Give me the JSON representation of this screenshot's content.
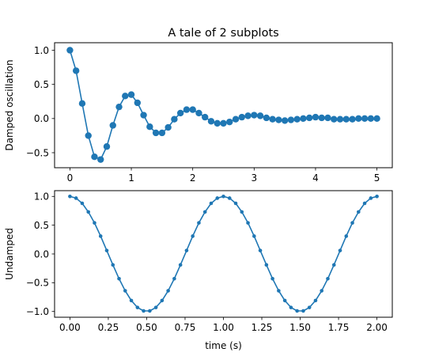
{
  "figure_title": "A tale of 2 subplots",
  "chart_data": [
    {
      "type": "line",
      "title": "A tale of 2 subplots",
      "xlabel": "",
      "ylabel": "Damped oscillation",
      "xlim": [
        -0.25,
        5.25
      ],
      "ylim": [
        -0.72,
        1.11
      ],
      "xticks": [
        0,
        1,
        2,
        3,
        4,
        5
      ],
      "xtick_labels": [
        "0",
        "1",
        "2",
        "3",
        "4",
        "5"
      ],
      "yticks": [
        -0.5,
        0.0,
        0.5,
        1.0
      ],
      "ytick_labels": [
        "−0.5",
        "0.0",
        "0.5",
        "1.0"
      ],
      "grid": false,
      "color": "#1f77b4",
      "marker": "circle",
      "series": [
        {
          "x": [
            0.0,
            0.1,
            0.2,
            0.3,
            0.4,
            0.5,
            0.6,
            0.7,
            0.8,
            0.9,
            1.0,
            1.1,
            1.2,
            1.3,
            1.4,
            1.5,
            1.6,
            1.7,
            1.8,
            1.9,
            2.0,
            2.1,
            2.2,
            2.3,
            2.4,
            2.5,
            2.6,
            2.7,
            2.8,
            2.9,
            3.0,
            3.1,
            3.2,
            3.3,
            3.4,
            3.5,
            3.6,
            3.7,
            3.8,
            3.9,
            4.0,
            4.1,
            4.2,
            4.3,
            4.4,
            4.5,
            4.6,
            4.7,
            4.8,
            4.9,
            5.0
          ],
          "y": [
            1.0,
            0.7,
            0.22,
            -0.25,
            -0.56,
            -0.6,
            -0.41,
            -0.1,
            0.17,
            0.33,
            0.35,
            0.23,
            0.05,
            -0.12,
            -0.21,
            -0.21,
            -0.13,
            -0.01,
            0.08,
            0.13,
            0.13,
            0.08,
            0.02,
            -0.04,
            -0.07,
            -0.07,
            -0.05,
            -0.01,
            0.02,
            0.04,
            0.05,
            0.04,
            0.01,
            -0.01,
            -0.02,
            -0.03,
            -0.02,
            -0.01,
            0.0,
            0.01,
            0.02,
            0.01,
            0.01,
            -0.01,
            -0.01,
            -0.01,
            -0.01,
            0.0,
            0.0,
            0.0,
            0.0
          ]
        }
      ]
    },
    {
      "type": "line",
      "title": "",
      "xlabel": "time (s)",
      "ylabel": "Undamped",
      "xlim": [
        -0.1,
        2.1
      ],
      "ylim": [
        -1.1,
        1.1
      ],
      "xticks": [
        0.0,
        0.25,
        0.5,
        0.75,
        1.0,
        1.25,
        1.5,
        1.75,
        2.0
      ],
      "xtick_labels": [
        "0.00",
        "0.25",
        "0.50",
        "0.75",
        "1.00",
        "1.25",
        "1.50",
        "1.75",
        "2.00"
      ],
      "yticks": [
        -1.0,
        -0.5,
        0.0,
        0.5,
        1.0
      ],
      "ytick_labels": [
        "−1.0",
        "−0.5",
        "0.0",
        "0.5",
        "1.0"
      ],
      "grid": false,
      "color": "#1f77b4",
      "marker": "small-dot",
      "series": [
        {
          "x": [
            0.0,
            0.04,
            0.08,
            0.12,
            0.16,
            0.2,
            0.24,
            0.28,
            0.32,
            0.36,
            0.4,
            0.44,
            0.48,
            0.52,
            0.56,
            0.6,
            0.64,
            0.68,
            0.72,
            0.76,
            0.8,
            0.84,
            0.88,
            0.92,
            0.96,
            1.0,
            1.04,
            1.08,
            1.12,
            1.16,
            1.2,
            1.24,
            1.28,
            1.32,
            1.36,
            1.4,
            1.44,
            1.48,
            1.52,
            1.56,
            1.6,
            1.64,
            1.68,
            1.72,
            1.76,
            1.8,
            1.84,
            1.88,
            1.92,
            1.96,
            2.0
          ],
          "y": [
            1.0,
            0.97,
            0.88,
            0.73,
            0.54,
            0.31,
            0.06,
            -0.19,
            -0.43,
            -0.64,
            -0.81,
            -0.93,
            -0.99,
            -0.99,
            -0.93,
            -0.81,
            -0.64,
            -0.43,
            -0.19,
            0.06,
            0.31,
            0.54,
            0.73,
            0.88,
            0.97,
            1.0,
            0.97,
            0.88,
            0.73,
            0.54,
            0.31,
            0.06,
            -0.19,
            -0.43,
            -0.64,
            -0.81,
            -0.93,
            -0.99,
            -0.99,
            -0.93,
            -0.81,
            -0.64,
            -0.43,
            -0.19,
            0.06,
            0.31,
            0.54,
            0.73,
            0.88,
            0.97,
            1.0
          ]
        }
      ]
    }
  ]
}
